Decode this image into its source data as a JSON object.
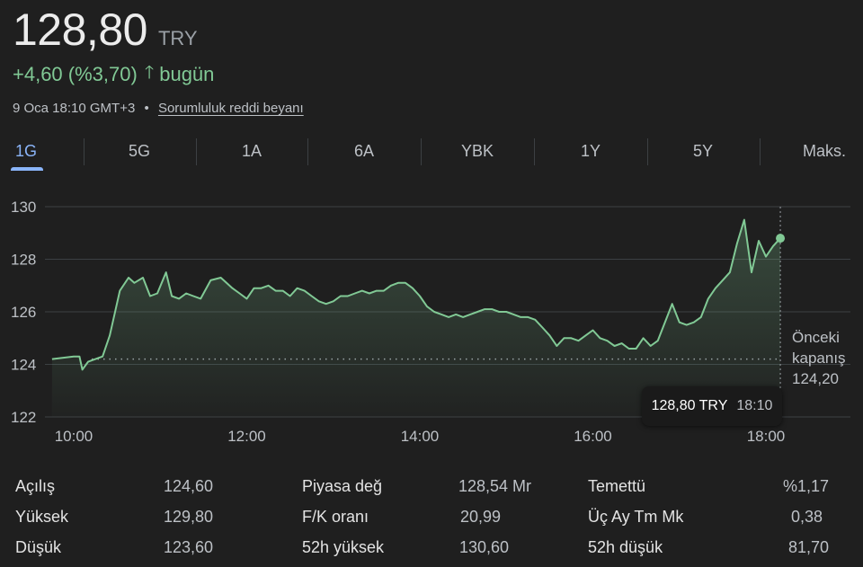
{
  "header": {
    "price": "128,80",
    "currency": "TRY",
    "change": "+4,60 (%3,70)",
    "change_suffix": "bugün",
    "timestamp": "9 Oca 18:10 GMT+3",
    "separator": "•",
    "disclaimer": "Sorumluluk reddi beyanı"
  },
  "tabs": [
    {
      "label": "1G",
      "active": true
    },
    {
      "label": "5G",
      "active": false
    },
    {
      "label": "1A",
      "active": false
    },
    {
      "label": "6A",
      "active": false
    },
    {
      "label": "YBK",
      "active": false
    },
    {
      "label": "1Y",
      "active": false
    },
    {
      "label": "5Y",
      "active": false
    },
    {
      "label": "Maks.",
      "active": false
    }
  ],
  "chart_data": {
    "type": "area",
    "ylim": [
      122,
      130
    ],
    "yticks": [
      130,
      128,
      126,
      124,
      122
    ],
    "ytick_labels": [
      "130",
      "128",
      "126",
      "124",
      "122"
    ],
    "xlim": [
      "09:45",
      "18:10"
    ],
    "xticks": [
      "10:00",
      "12:00",
      "14:00",
      "16:00",
      "18:00"
    ],
    "previous_close": 124.2,
    "previous_close_label": [
      "Önceki",
      "kapanış",
      "124,20"
    ],
    "tooltip": {
      "value": "128,80 TRY",
      "time": "18:10"
    },
    "line_color": "#81c995",
    "series": [
      {
        "x": [
          "09:45",
          "10:00",
          "10:04",
          "10:06",
          "10:10",
          "10:20",
          "10:25",
          "10:32",
          "10:38",
          "10:42",
          "10:48",
          "10:53",
          "10:58",
          "11:04",
          "11:08",
          "11:13",
          "11:18",
          "11:23",
          "11:28",
          "11:35",
          "11:42",
          "11:50",
          "11:55",
          "12:00",
          "12:05",
          "12:10",
          "12:15",
          "12:20",
          "12:25",
          "12:30",
          "12:35",
          "12:40",
          "12:45",
          "12:50",
          "12:55",
          "13:00",
          "13:05",
          "13:10",
          "13:15",
          "13:20",
          "13:25",
          "13:30",
          "13:35",
          "13:40",
          "13:45",
          "13:50",
          "13:55",
          "14:00",
          "14:05",
          "14:10",
          "14:15",
          "14:20",
          "14:25",
          "14:30",
          "14:35",
          "14:40",
          "14:45",
          "14:50",
          "14:55",
          "15:00",
          "15:05",
          "15:10",
          "15:15",
          "15:20",
          "15:25",
          "15:30",
          "15:35",
          "15:40",
          "15:45",
          "15:50",
          "15:55",
          "16:00",
          "16:05",
          "16:10",
          "16:15",
          "16:20",
          "16:25",
          "16:30",
          "16:35",
          "16:40",
          "16:45",
          "16:50",
          "16:55",
          "17:00",
          "17:05",
          "17:10",
          "17:15",
          "17:20",
          "17:25",
          "17:30",
          "17:35",
          "17:40",
          "17:45",
          "17:50",
          "17:55",
          "18:00",
          "18:05",
          "18:10"
        ],
        "y": [
          124.2,
          124.3,
          124.3,
          123.8,
          124.1,
          124.3,
          125.1,
          126.8,
          127.3,
          127.1,
          127.3,
          126.6,
          126.7,
          127.5,
          126.6,
          126.5,
          126.7,
          126.6,
          126.5,
          127.2,
          127.3,
          126.9,
          126.7,
          126.5,
          126.9,
          126.9,
          127.0,
          126.8,
          126.8,
          126.6,
          126.9,
          126.8,
          126.6,
          126.4,
          126.3,
          126.4,
          126.6,
          126.6,
          126.7,
          126.8,
          126.7,
          126.8,
          126.8,
          127.0,
          127.1,
          127.1,
          126.9,
          126.6,
          126.2,
          126.0,
          125.9,
          125.8,
          125.9,
          125.8,
          125.9,
          126.0,
          126.1,
          126.1,
          126.0,
          126.0,
          125.9,
          125.8,
          125.8,
          125.7,
          125.4,
          125.1,
          124.7,
          125.0,
          125.0,
          124.9,
          125.1,
          125.3,
          125.0,
          124.9,
          124.7,
          124.8,
          124.6,
          124.6,
          125.0,
          124.7,
          124.9,
          125.6,
          126.3,
          125.6,
          125.5,
          125.6,
          125.8,
          126.5,
          126.9,
          127.2,
          127.5,
          128.6,
          129.5,
          127.5,
          128.7,
          128.1,
          128.5,
          128.8
        ]
      }
    ]
  },
  "stats": [
    {
      "label": "Açılış",
      "value": "124,60"
    },
    {
      "label": "Yüksek",
      "value": "129,80"
    },
    {
      "label": "Düşük",
      "value": "123,60"
    },
    {
      "label": "Piyasa değ",
      "value": "128,54 Mr"
    },
    {
      "label": "F/K oranı",
      "value": "20,99"
    },
    {
      "label": "52h yüksek",
      "value": "130,60"
    },
    {
      "label": "Temettü",
      "value": "%1,17"
    },
    {
      "label": "Üç Ay Tm Mk",
      "value": "0,38"
    },
    {
      "label": "52h düşük",
      "value": "81,70"
    }
  ]
}
